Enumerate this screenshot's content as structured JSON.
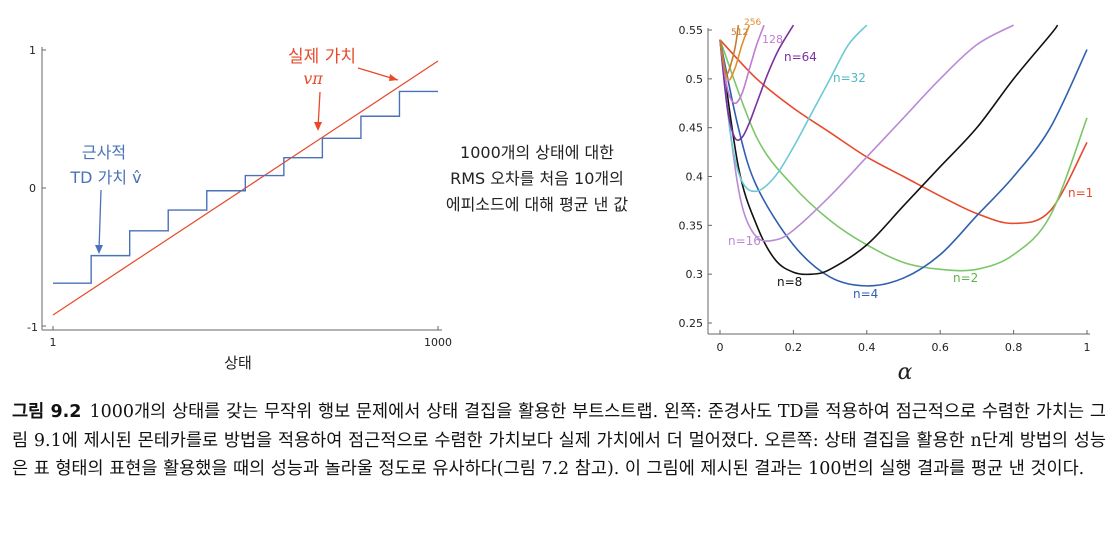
{
  "colors": {
    "true_value": "#e8492b",
    "approx_value": "#4a72b8",
    "n1": "#e8492b",
    "n2": "#7cc66a",
    "n4": "#2f5fae",
    "n8": "#111111",
    "n16": "#b98ad6",
    "n32": "#6cc9d4",
    "n64": "#7b2fa0",
    "n128": "#c27bd1",
    "n256": "#e08d2c",
    "n512": "#c47c2e"
  },
  "left_annotations": {
    "true_value_label": "실제 가치",
    "true_value_symbol": "vπ",
    "approx_label_line1": "근사적",
    "approx_label_line2": "TD 가치 v̂"
  },
  "middle_annotation": {
    "line1": "1000개의 상태에 대한",
    "line2": "RMS 오차를 처음 10개의",
    "line3": "에피소드에 대해 평균 낸 값"
  },
  "chart_data": [
    {
      "type": "line",
      "xlabel": "상태",
      "ylabel": "",
      "xlim": [
        1,
        1000
      ],
      "ylim": [
        -1,
        1
      ],
      "x_tick_labels": [
        "1",
        "1000"
      ],
      "y_tick_labels": [
        "1",
        "0",
        "-1"
      ],
      "series": [
        {
          "name": "실제 가치 vπ",
          "x": [
            1,
            1000
          ],
          "y": [
            -0.92,
            0.92
          ]
        },
        {
          "name": "근사적 TD 가치 v̂",
          "step_edges": [
            1,
            100,
            200,
            300,
            400,
            500,
            600,
            700,
            800,
            900,
            1000
          ],
          "values": [
            -0.69,
            -0.49,
            -0.31,
            -0.16,
            -0.02,
            0.09,
            0.22,
            0.36,
            0.52,
            0.7
          ]
        }
      ]
    },
    {
      "type": "line",
      "xlabel": "α",
      "ylabel": "",
      "xlim": [
        0,
        1
      ],
      "ylim": [
        0.25,
        0.55
      ],
      "x_ticks": [
        0,
        0.2,
        0.4,
        0.6,
        0.8,
        1
      ],
      "x_tick_labels": [
        "0",
        "0.2",
        "0.4",
        "0.6",
        "0.8",
        "1"
      ],
      "y_ticks": [
        0.25,
        0.3,
        0.35,
        0.4,
        0.45,
        0.5,
        0.55
      ],
      "y_tick_labels": [
        "0.25",
        "0.3",
        "0.35",
        "0.4",
        "0.45",
        "0.5",
        "0.55"
      ],
      "series": [
        {
          "name": "n=1",
          "x": [
            0,
            0.1,
            0.2,
            0.3,
            0.4,
            0.5,
            0.6,
            0.7,
            0.8,
            0.9,
            1.0
          ],
          "y": [
            0.54,
            0.5,
            0.47,
            0.445,
            0.42,
            0.4,
            0.38,
            0.362,
            0.352,
            0.365,
            0.435
          ]
        },
        {
          "name": "n=2",
          "x": [
            0,
            0.1,
            0.2,
            0.3,
            0.4,
            0.5,
            0.6,
            0.7,
            0.8,
            0.9,
            1.0
          ],
          "y": [
            0.54,
            0.44,
            0.39,
            0.355,
            0.33,
            0.312,
            0.305,
            0.305,
            0.32,
            0.36,
            0.46
          ]
        },
        {
          "name": "n=4",
          "x": [
            0,
            0.05,
            0.1,
            0.2,
            0.3,
            0.4,
            0.5,
            0.6,
            0.7,
            0.8,
            0.9,
            1.0
          ],
          "y": [
            0.54,
            0.45,
            0.39,
            0.33,
            0.297,
            0.288,
            0.296,
            0.32,
            0.36,
            0.4,
            0.45,
            0.53
          ]
        },
        {
          "name": "n=8",
          "x": [
            0,
            0.05,
            0.1,
            0.15,
            0.2,
            0.25,
            0.3,
            0.4,
            0.5,
            0.6,
            0.7,
            0.8,
            0.9,
            0.92
          ],
          "y": [
            0.54,
            0.41,
            0.35,
            0.315,
            0.302,
            0.3,
            0.305,
            0.33,
            0.37,
            0.41,
            0.45,
            0.5,
            0.545,
            0.555
          ]
        },
        {
          "name": "n=16",
          "x": [
            0,
            0.03,
            0.06,
            0.1,
            0.15,
            0.2,
            0.3,
            0.4,
            0.5,
            0.6,
            0.7,
            0.8
          ],
          "y": [
            0.54,
            0.44,
            0.37,
            0.338,
            0.335,
            0.345,
            0.38,
            0.42,
            0.46,
            0.5,
            0.535,
            0.555
          ]
        },
        {
          "name": "n=32",
          "x": [
            0,
            0.03,
            0.06,
            0.1,
            0.15,
            0.2,
            0.25,
            0.3,
            0.35,
            0.4
          ],
          "y": [
            0.54,
            0.44,
            0.395,
            0.385,
            0.4,
            0.43,
            0.465,
            0.5,
            0.535,
            0.555
          ]
        },
        {
          "name": "n=64",
          "x": [
            0,
            0.02,
            0.04,
            0.06,
            0.08,
            0.1,
            0.13,
            0.16,
            0.2
          ],
          "y": [
            0.54,
            0.47,
            0.44,
            0.44,
            0.455,
            0.475,
            0.505,
            0.53,
            0.555
          ]
        },
        {
          "name": "128",
          "x": [
            0,
            0.02,
            0.04,
            0.06,
            0.08,
            0.1,
            0.12
          ],
          "y": [
            0.54,
            0.49,
            0.475,
            0.485,
            0.51,
            0.535,
            0.555
          ]
        },
        {
          "name": "256",
          "x": [
            0,
            0.02,
            0.04,
            0.06,
            0.08
          ],
          "y": [
            0.54,
            0.5,
            0.51,
            0.535,
            0.555
          ]
        },
        {
          "name": "512",
          "x": [
            0,
            0.01,
            0.02,
            0.04,
            0.05
          ],
          "y": [
            0.54,
            0.515,
            0.505,
            0.53,
            0.555
          ]
        }
      ]
    }
  ],
  "caption": {
    "figure_label": "그림 9.2",
    "text": "1000개의 상태를 갖는 무작위 행보 문제에서 상태 결집을 활용한 부트스트랩. 왼쪽: 준경사도 TD를 적용하여 점근적으로 수렴한 가치는 그림 9.1에 제시된 몬테카를로 방법을 적용하여 점근적으로 수렴한 가치보다 실제 가치에서 더 멀어졌다. 오른쪽: 상태 결집을 활용한 n단계 방법의 성능은 표 형태의 표현을 활용했을 때의 성능과 놀라울 정도로 유사하다(그림 7.2 참고). 이 그림에 제시된 결과는 100번의 실행 결과를 평균 낸 것이다."
  }
}
